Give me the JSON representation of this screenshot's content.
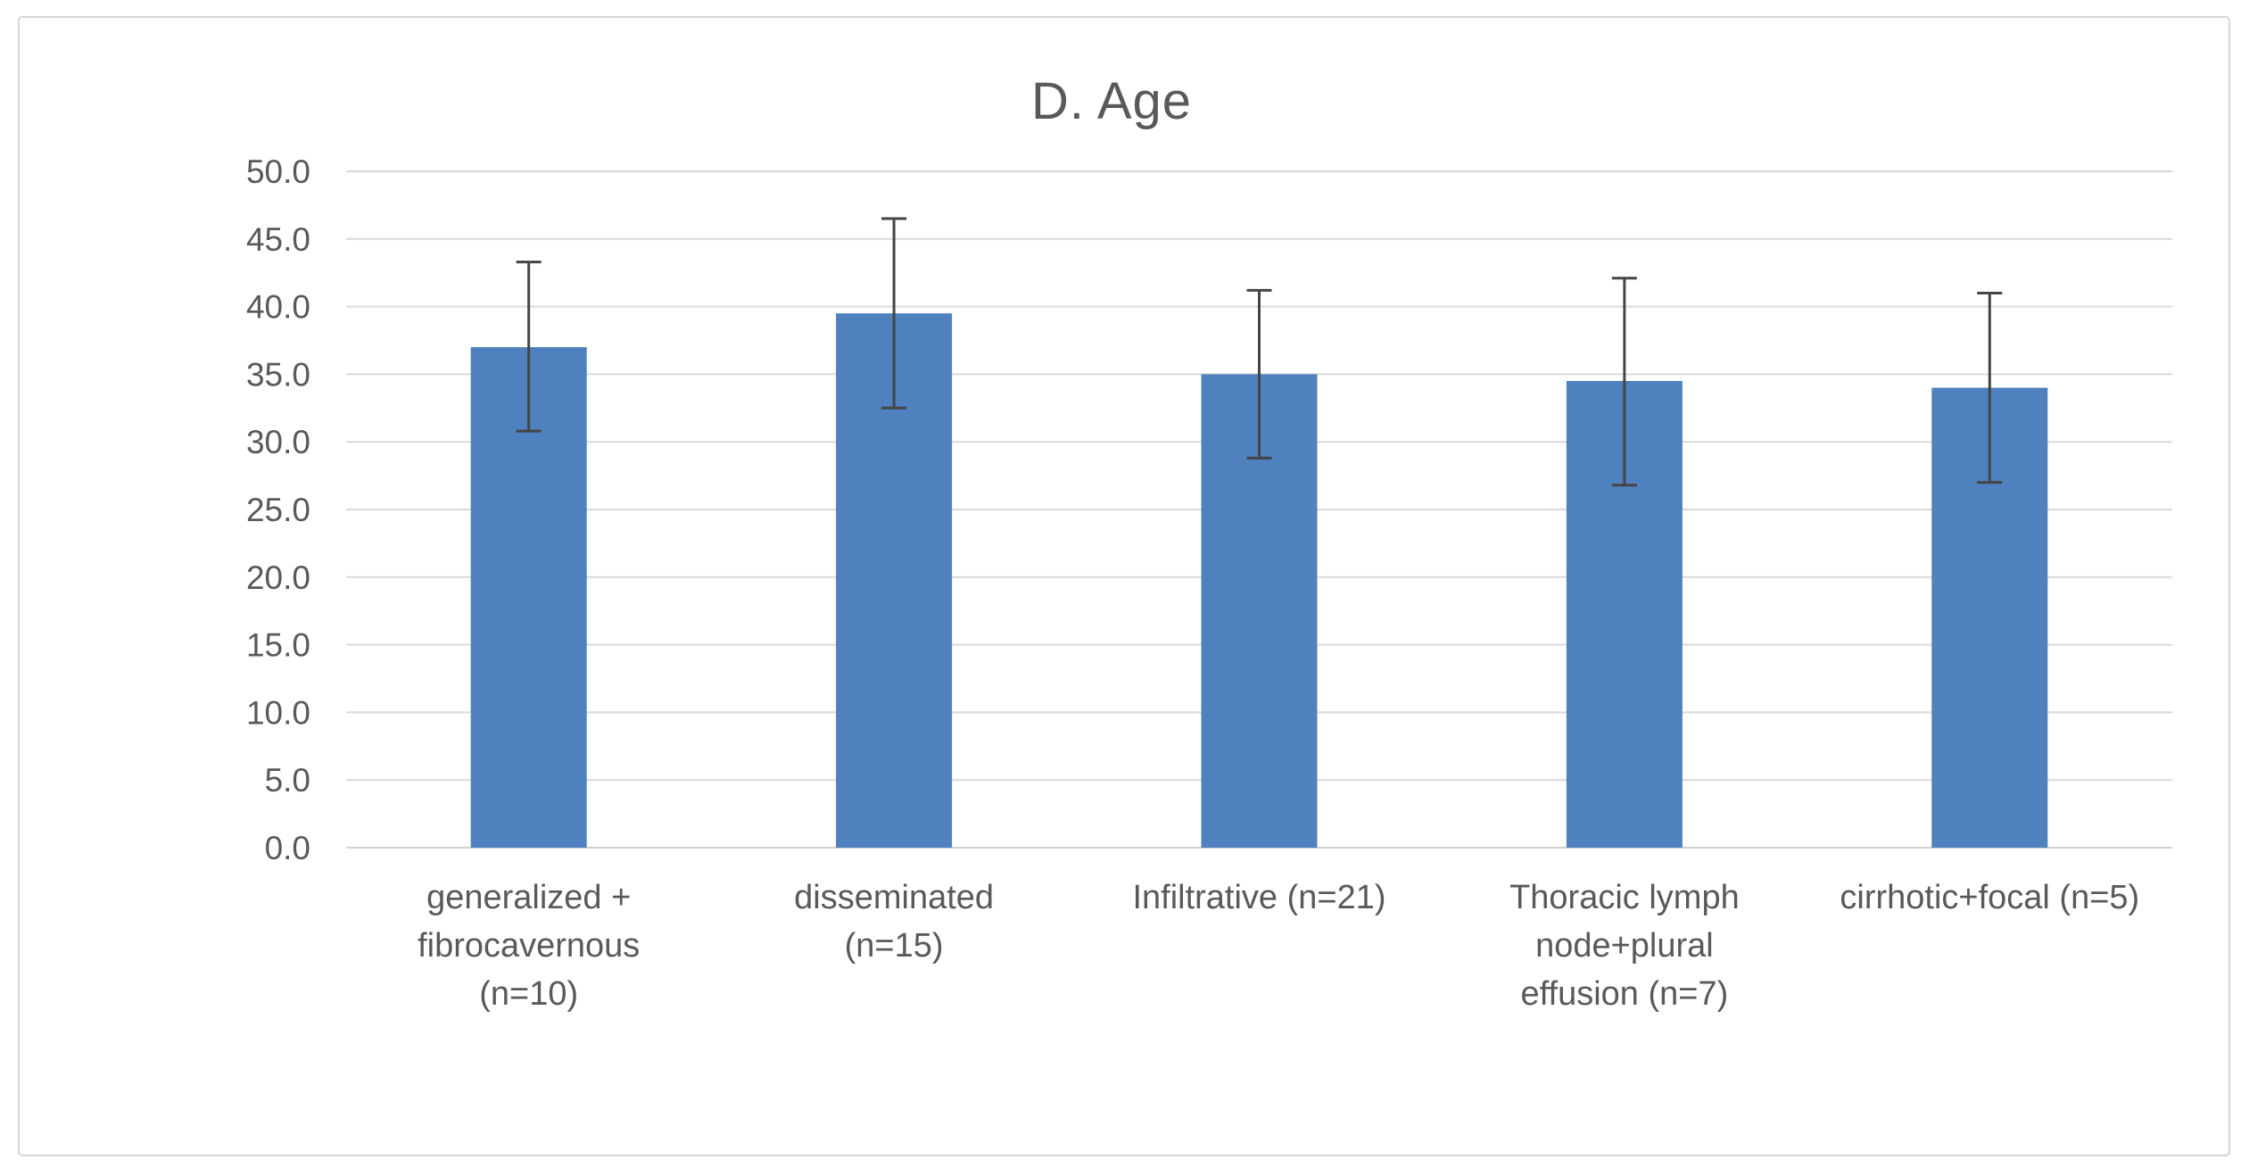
{
  "chart_data": {
    "type": "bar",
    "title": "D. Age",
    "categories": [
      "generalized + fibrocavernous (n=10)",
      "disseminated (n=15)",
      "Infiltrative (n=21)",
      "Thoracic lymph node+plural effusion (n=7)",
      "cirrhotic+focal (n=5)"
    ],
    "category_lines": [
      [
        "generalized +",
        "fibrocavernous",
        "(n=10)"
      ],
      [
        "disseminated",
        "(n=15)"
      ],
      [
        "Infiltrative (n=21)"
      ],
      [
        "Thoracic lymph",
        "node+plural",
        "effusion (n=7)"
      ],
      [
        "cirrhotic+focal (n=5)"
      ]
    ],
    "n_per_group": [
      10,
      15,
      21,
      7,
      5
    ],
    "values": [
      37.0,
      39.5,
      35.0,
      34.5,
      34.0
    ],
    "error_upper": [
      43.3,
      46.5,
      41.2,
      42.1,
      41.0
    ],
    "error_lower": [
      30.8,
      32.5,
      28.8,
      26.8,
      27.0
    ],
    "xlabel": "",
    "ylabel": "",
    "ylim": [
      0,
      50
    ],
    "ytick_step": 5,
    "ytick_labels": [
      "0.0",
      "5.0",
      "10.0",
      "15.0",
      "20.0",
      "25.0",
      "30.0",
      "35.0",
      "40.0",
      "45.0",
      "50.0"
    ],
    "grid": "horizontal",
    "legend": "none",
    "colors": {
      "bar": "#4E81BD",
      "gridline": "#D9D9D9",
      "axis_line": "#D2D2D2",
      "text": "#595959",
      "error_bar": "#454545",
      "frame_border": "#D6D6D6",
      "background": "#FFFFFF"
    }
  }
}
